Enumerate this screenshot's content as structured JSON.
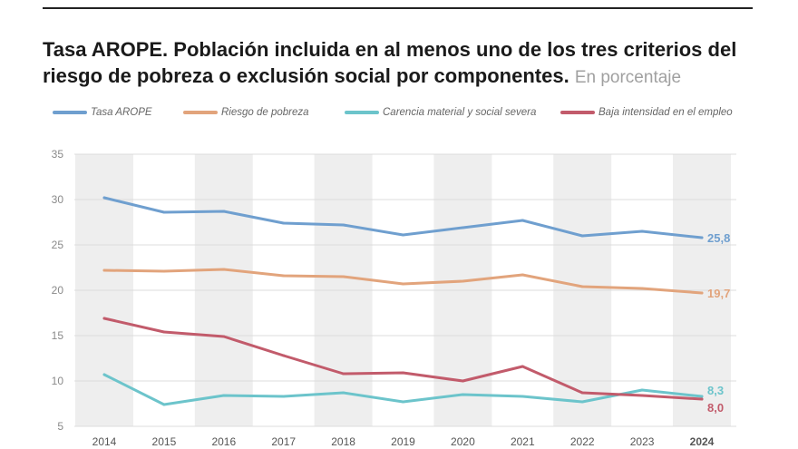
{
  "title": "Tasa AROPE. Población incluida en al menos uno de los tres criterios del riesgo de pobreza o exclusión social por componentes.",
  "subtitle": "En porcentaje",
  "chart_data": {
    "type": "line",
    "title": "Tasa AROPE. Población incluida en al menos uno de los tres criterios del riesgo de pobreza o exclusión social por componentes.",
    "subtitle": "En porcentaje",
    "xlabel": "",
    "ylabel": "",
    "x": [
      "2014",
      "2015",
      "2016",
      "2017",
      "2018",
      "2019",
      "2020",
      "2021",
      "2022",
      "2023",
      "2024"
    ],
    "ylim": [
      5,
      35
    ],
    "yticks": [
      5,
      10,
      15,
      20,
      25,
      30,
      35
    ],
    "grid": true,
    "legend_position": "top",
    "series": [
      {
        "name": "Tasa AROPE",
        "color": "#6f9fcf",
        "values": [
          30.2,
          28.6,
          28.7,
          27.4,
          27.2,
          26.1,
          26.9,
          27.7,
          26.0,
          26.5,
          25.8
        ],
        "end_label": "25,8"
      },
      {
        "name": "Riesgo de pobreza",
        "color": "#e2a47c",
        "values": [
          22.2,
          22.1,
          22.3,
          21.6,
          21.5,
          20.7,
          21.0,
          21.7,
          20.4,
          20.2,
          19.7
        ],
        "end_label": "19,7"
      },
      {
        "name": "Carencia material y social severa",
        "color": "#6cc4cb",
        "values": [
          10.7,
          7.4,
          8.4,
          8.3,
          8.7,
          7.7,
          8.5,
          8.3,
          7.7,
          9.0,
          8.3
        ],
        "end_label": "8,3"
      },
      {
        "name": "Baja intensidad en el empleo",
        "color": "#c25b6b",
        "values": [
          16.9,
          15.4,
          14.9,
          12.8,
          10.8,
          10.9,
          10.0,
          11.6,
          8.7,
          8.4,
          8.0
        ],
        "end_label": "8,0"
      }
    ]
  }
}
